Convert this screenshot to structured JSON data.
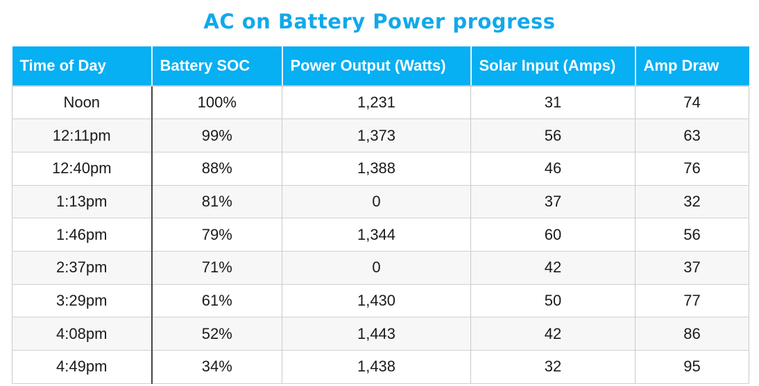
{
  "title": "AC on Battery Power progress",
  "colors": {
    "title": "#10a9ea",
    "header_background": "#07aff3",
    "header_text": "#ffffff"
  },
  "chart_data": {
    "type": "table",
    "title": "AC on Battery Power progress",
    "columns": [
      "Time of Day",
      "Battery SOC",
      "Power Output (Watts)",
      "Solar Input (Amps)",
      "Amp Draw"
    ],
    "rows": [
      [
        "Noon",
        "100%",
        "1,231",
        "31",
        "74"
      ],
      [
        "12:11pm",
        "99%",
        "1,373",
        "56",
        "63"
      ],
      [
        "12:40pm",
        "88%",
        "1,388",
        "46",
        "76"
      ],
      [
        "1:13pm",
        "81%",
        "0",
        "37",
        "32"
      ],
      [
        "1:46pm",
        "79%",
        "1,344",
        "60",
        "56"
      ],
      [
        "2:37pm",
        "71%",
        "0",
        "42",
        "37"
      ],
      [
        "3:29pm",
        "61%",
        "1,430",
        "50",
        "77"
      ],
      [
        "4:08pm",
        "52%",
        "1,443",
        "42",
        "86"
      ],
      [
        "4:49pm",
        "34%",
        "1,438",
        "32",
        "95"
      ]
    ]
  }
}
